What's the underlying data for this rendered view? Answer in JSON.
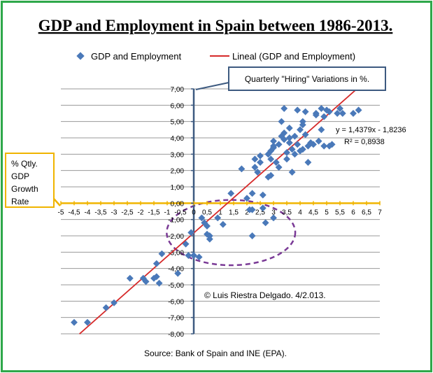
{
  "chart_data": {
    "type": "scatter",
    "title": "GDP and Employment  in Spain between 1986-2013.",
    "legend": [
      "GDP and Employment",
      "Lineal (GDP and Employment)"
    ],
    "legend_position": "top",
    "y_axis_label": "Quarterly \"Hiring\" Variations in %.",
    "x_axis_label": "% Qtly. GDP Growth Rate",
    "x_axis_label_lines": [
      "% Qtly.",
      "GDP",
      "Growth",
      "Rate"
    ],
    "xlim": [
      -5,
      7
    ],
    "ylim": [
      -8,
      7
    ],
    "x_tick_labels": [
      "-5",
      "-4,5",
      "-4",
      "-3,5",
      "-3",
      "-2,5",
      "-2",
      "-1,5",
      "-1",
      "-0,5",
      "0",
      "0,5",
      "1",
      "1,5",
      "2",
      "2,5",
      "3",
      "3,5",
      "4",
      "4,5",
      "5",
      "5,5",
      "6",
      "6,5",
      "7"
    ],
    "y_tick_labels": [
      "7,00",
      "6,00",
      "5,00",
      "4,00",
      "3,00",
      "2,00",
      "1,00",
      "0,00",
      "-1,00",
      "-2,00",
      "-3,00",
      "-4,00",
      "-5,00",
      "-6,00",
      "-7,00",
      "-8,00"
    ],
    "grid": "horizontal",
    "trendline": {
      "slope": 1.4379,
      "intercept": -1.8236,
      "equation": "y = 1,4379x - 1,8236",
      "r2": "R² = 0,8938"
    },
    "annotations": {
      "credit": "© Luis Riestra Delgado. 4/2.013.",
      "source": "Source: Bank of Spain and INE (EPA)."
    },
    "points": [
      {
        "x": -4.5,
        "y": -7.3
      },
      {
        "x": -4.0,
        "y": -7.3
      },
      {
        "x": -3.3,
        "y": -6.4
      },
      {
        "x": -3.0,
        "y": -6.1
      },
      {
        "x": -2.4,
        "y": -4.6
      },
      {
        "x": -1.9,
        "y": -4.6
      },
      {
        "x": -1.8,
        "y": -4.8
      },
      {
        "x": -1.5,
        "y": -4.6
      },
      {
        "x": -1.4,
        "y": -4.5
      },
      {
        "x": -1.3,
        "y": -4.9
      },
      {
        "x": -1.4,
        "y": -3.7
      },
      {
        "x": -1.2,
        "y": -3.1
      },
      {
        "x": -0.6,
        "y": -4.3
      },
      {
        "x": -0.3,
        "y": -2.5
      },
      {
        "x": -0.2,
        "y": -3.2
      },
      {
        "x": -0.1,
        "y": -1.8
      },
      {
        "x": 0.0,
        "y": -3.2
      },
      {
        "x": 0.2,
        "y": -3.3
      },
      {
        "x": 0.3,
        "y": -0.9
      },
      {
        "x": 0.4,
        "y": -1.2
      },
      {
        "x": 0.5,
        "y": -1.4
      },
      {
        "x": 0.5,
        "y": -1.9
      },
      {
        "x": 0.6,
        "y": -2.0
      },
      {
        "x": 0.6,
        "y": -2.2
      },
      {
        "x": 0.9,
        "y": -0.9
      },
      {
        "x": 1.1,
        "y": -1.3
      },
      {
        "x": 1.4,
        "y": 0.6
      },
      {
        "x": 1.8,
        "y": 2.1
      },
      {
        "x": 2.0,
        "y": 0.3
      },
      {
        "x": 2.1,
        "y": -0.4
      },
      {
        "x": 2.2,
        "y": 0.6
      },
      {
        "x": 2.2,
        "y": -0.4
      },
      {
        "x": 2.2,
        "y": -2.0
      },
      {
        "x": 2.3,
        "y": 2.7
      },
      {
        "x": 2.3,
        "y": 2.2
      },
      {
        "x": 2.4,
        "y": 1.9
      },
      {
        "x": 2.5,
        "y": 2.9
      },
      {
        "x": 2.5,
        "y": 2.5
      },
      {
        "x": 2.6,
        "y": 0.5
      },
      {
        "x": 2.6,
        "y": -0.3
      },
      {
        "x": 2.7,
        "y": -1.2
      },
      {
        "x": 2.8,
        "y": 1.6
      },
      {
        "x": 2.8,
        "y": 3.0
      },
      {
        "x": 2.9,
        "y": 2.7
      },
      {
        "x": 2.9,
        "y": 3.2
      },
      {
        "x": 2.9,
        "y": 1.7
      },
      {
        "x": 3.0,
        "y": -0.9
      },
      {
        "x": 3.0,
        "y": 3.8
      },
      {
        "x": 3.0,
        "y": 3.5
      },
      {
        "x": 3.1,
        "y": 2.5
      },
      {
        "x": 3.2,
        "y": 2.2
      },
      {
        "x": 3.2,
        "y": 3.6
      },
      {
        "x": 3.3,
        "y": 4.1
      },
      {
        "x": 3.3,
        "y": 5.0
      },
      {
        "x": 3.4,
        "y": 3.9
      },
      {
        "x": 3.4,
        "y": 4.3
      },
      {
        "x": 3.4,
        "y": 5.8
      },
      {
        "x": 3.5,
        "y": 3.1
      },
      {
        "x": 3.5,
        "y": 2.7
      },
      {
        "x": 3.6,
        "y": 3.7
      },
      {
        "x": 3.6,
        "y": 4.0
      },
      {
        "x": 3.7,
        "y": 1.9
      },
      {
        "x": 3.7,
        "y": 3.3
      },
      {
        "x": 3.8,
        "y": 4.1
      },
      {
        "x": 3.8,
        "y": 3.0
      },
      {
        "x": 3.9,
        "y": 3.6
      },
      {
        "x": 3.9,
        "y": 5.7
      },
      {
        "x": 4.0,
        "y": 3.2
      },
      {
        "x": 4.0,
        "y": 4.5
      },
      {
        "x": 4.1,
        "y": 4.8
      },
      {
        "x": 4.1,
        "y": 5.0
      },
      {
        "x": 4.1,
        "y": 3.3
      },
      {
        "x": 4.2,
        "y": 4.2
      },
      {
        "x": 4.2,
        "y": 5.6
      },
      {
        "x": 4.3,
        "y": 2.5
      },
      {
        "x": 4.3,
        "y": 3.5
      },
      {
        "x": 4.4,
        "y": 3.7
      },
      {
        "x": 4.5,
        "y": 3.6
      },
      {
        "x": 4.6,
        "y": 5.5
      },
      {
        "x": 4.6,
        "y": 5.4
      },
      {
        "x": 4.7,
        "y": 3.8
      },
      {
        "x": 4.8,
        "y": 4.5
      },
      {
        "x": 4.8,
        "y": 5.8
      },
      {
        "x": 4.9,
        "y": 3.5
      },
      {
        "x": 5.0,
        "y": 5.7
      },
      {
        "x": 5.1,
        "y": 5.6
      },
      {
        "x": 5.1,
        "y": 3.5
      },
      {
        "x": 5.2,
        "y": 3.6
      },
      {
        "x": 5.4,
        "y": 5.5
      },
      {
        "x": 5.5,
        "y": 5.8
      },
      {
        "x": 5.6,
        "y": 5.5
      },
      {
        "x": 6.0,
        "y": 5.5
      },
      {
        "x": 6.2,
        "y": 5.7
      },
      {
        "x": 3.6,
        "y": 4.6
      },
      {
        "x": 3.0,
        "y": 3.4
      },
      {
        "x": 4.9,
        "y": 5.3
      }
    ]
  }
}
